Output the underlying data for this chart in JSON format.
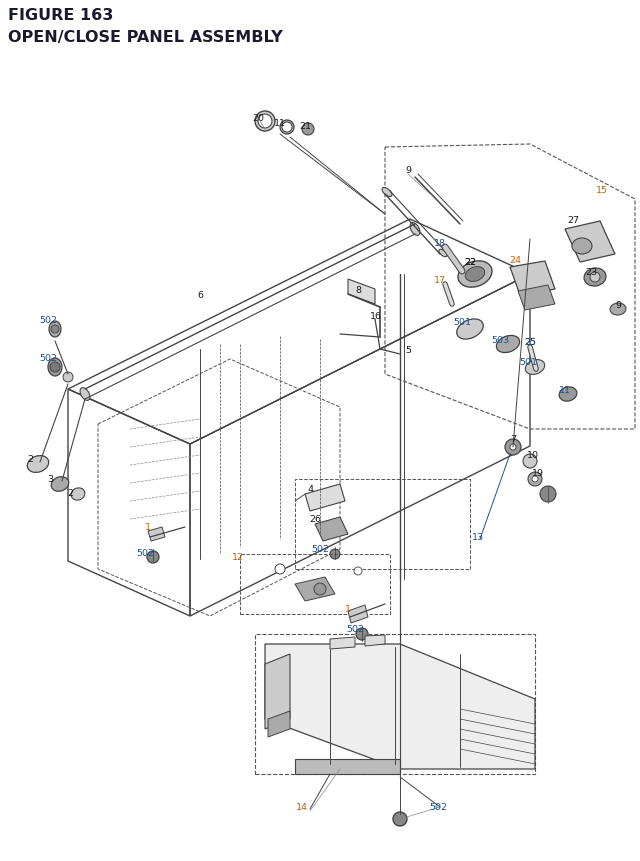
{
  "title_line1": "FIGURE 163",
  "title_line2": "OPEN/CLOSE PANEL ASSEMBLY",
  "bg_color": "#ffffff",
  "title_color": "#1a1a2e",
  "title_fontsize": 11.5,
  "fig_width": 6.4,
  "fig_height": 8.62,
  "black": "#1a1a1a",
  "gray": "#444444",
  "lgray": "#888888",
  "orange": "#c06000",
  "blue": "#1a5090",
  "dashed_color": "#555555"
}
